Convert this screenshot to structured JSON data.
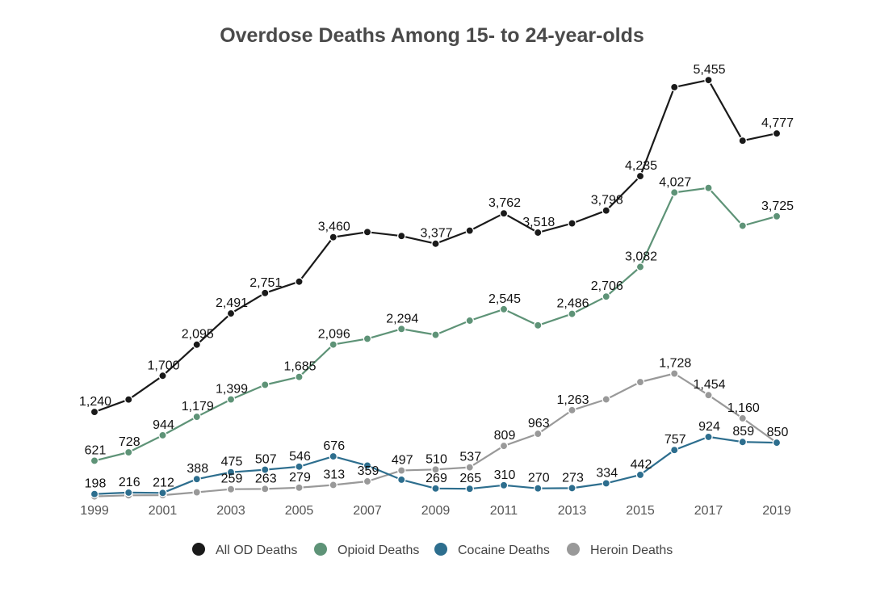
{
  "chart_data": {
    "type": "line",
    "title": "Overdose Deaths Among 15- to 24-year-olds",
    "xlabel": "",
    "ylabel": "",
    "x": [
      1999,
      2000,
      2001,
      2002,
      2003,
      2004,
      2005,
      2006,
      2007,
      2008,
      2009,
      2010,
      2011,
      2012,
      2013,
      2014,
      2015,
      2016,
      2017,
      2018,
      2019
    ],
    "x_tick_labels": [
      "1999",
      "2001",
      "2003",
      "2005",
      "2007",
      "2009",
      "2011",
      "2013",
      "2015",
      "2017",
      "2019"
    ],
    "ylim": [
      0,
      6000
    ],
    "grid": false,
    "legend_position": "bottom",
    "series": [
      {
        "name": "All OD Deaths",
        "color": "#1a1a1a",
        "values": [
          1240,
          1398,
          1700,
          2095,
          2491,
          2751,
          2895,
          3460,
          3525,
          3475,
          3377,
          3543,
          3762,
          3518,
          3635,
          3798,
          4235,
          5365,
          5455,
          4685,
          4777
        ],
        "labels": [
          "1,240",
          "",
          "1,700",
          "2,095",
          "2,491",
          "2,751",
          "",
          "3,460",
          "",
          "",
          "3,377",
          "",
          "3,762",
          "3,518",
          "",
          "3,798",
          "4,235",
          "",
          "5,455",
          "",
          "4,777"
        ]
      },
      {
        "name": "Opioid Deaths",
        "color": "#5e9377",
        "values": [
          621,
          728,
          944,
          1179,
          1399,
          1585,
          1685,
          2096,
          2170,
          2294,
          2220,
          2400,
          2545,
          2340,
          2486,
          2706,
          3082,
          4027,
          4085,
          3605,
          3725
        ],
        "labels": [
          "621",
          "728",
          "944",
          "1,179",
          "1,399",
          "",
          "1,685",
          "2,096",
          "",
          "2,294",
          "",
          "",
          "2,545",
          "",
          "2,486",
          "2,706",
          "3,082",
          "4,027",
          "",
          "",
          "3,725"
        ]
      },
      {
        "name": "Cocaine Deaths",
        "color": "#2d6e8e",
        "values": [
          198,
          216,
          212,
          388,
          475,
          507,
          546,
          676,
          560,
          380,
          269,
          265,
          310,
          270,
          273,
          334,
          442,
          757,
          924,
          859,
          850
        ],
        "labels": [
          "198",
          "216",
          "212",
          "388",
          "475",
          "507",
          "546",
          "676",
          "",
          "",
          "269",
          "265",
          "310",
          "270",
          "273",
          "334",
          "442",
          "757",
          "924",
          "859",
          ""
        ]
      },
      {
        "name": "Heroin Deaths",
        "color": "#999999",
        "values": [
          168,
          182,
          184,
          220,
          259,
          263,
          279,
          313,
          359,
          497,
          510,
          537,
          809,
          963,
          1263,
          1400,
          1620,
          1728,
          1454,
          1160,
          850
        ],
        "labels": [
          "",
          "",
          "",
          "",
          "259",
          "263",
          "279",
          "313",
          "359",
          "497",
          "510",
          "537",
          "809",
          "963",
          "1,263",
          "",
          "",
          "1,728",
          "1,454",
          "1,160",
          "850"
        ]
      }
    ]
  }
}
